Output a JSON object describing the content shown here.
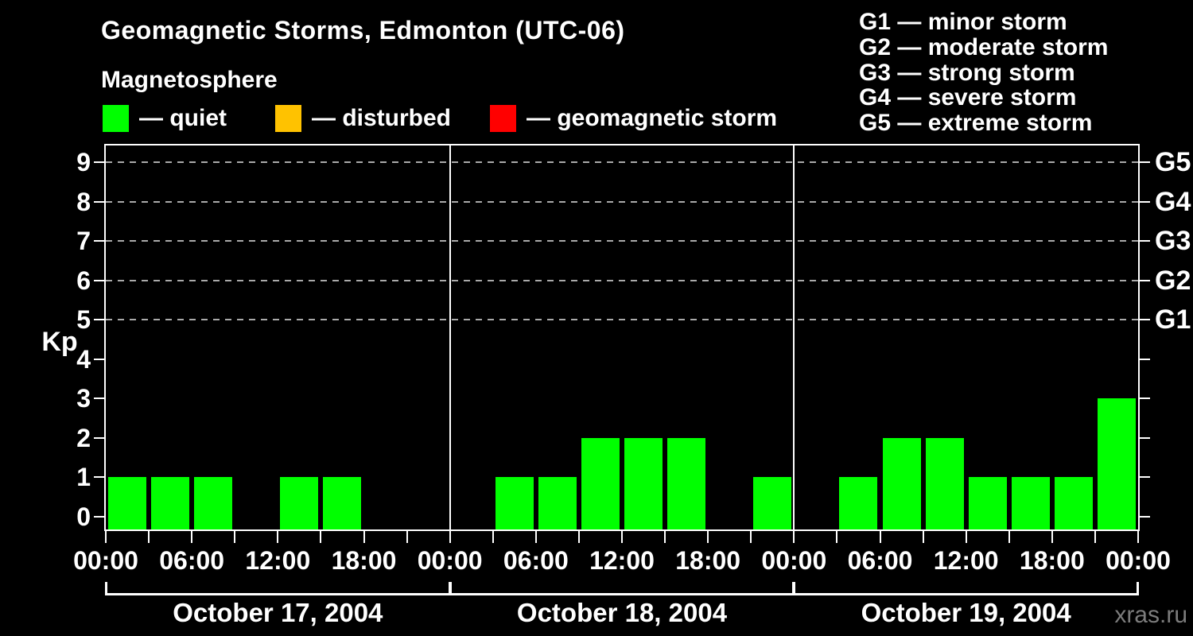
{
  "header": {
    "title": "Geomagnetic Storms, Edmonton (UTC-06)",
    "subtitle": "Magnetosphere"
  },
  "legend": {
    "items": [
      {
        "name": "quiet",
        "label": "— quiet",
        "color": "#00ff00"
      },
      {
        "name": "disturbed",
        "label": "— disturbed",
        "color": "#ffc200"
      },
      {
        "name": "geomagnetic-storm",
        "label": "— geomagnetic storm",
        "color": "#ff0000"
      }
    ]
  },
  "storm_scale": [
    "G1 — minor storm",
    "G2 — moderate storm",
    "G3 — strong storm",
    "G4 — severe storm",
    "G5 — extreme storm"
  ],
  "watermark": "xras.ru",
  "chart_data": {
    "type": "bar",
    "title": "Geomagnetic Storms, Edmonton (UTC-06)",
    "subtitle": "Magnetosphere",
    "xlabel": "",
    "ylabel": "Kp",
    "ylim": [
      -0.4,
      9.45
    ],
    "yticks": [
      0,
      1,
      2,
      3,
      4,
      5,
      6,
      7,
      8,
      9
    ],
    "grid": "dashed horizontal lines at storm levels only",
    "grid_levels": [
      5,
      6,
      7,
      8,
      9
    ],
    "right_axis_labels": [
      {
        "label": "G1",
        "value": 5
      },
      {
        "label": "G2",
        "value": 6
      },
      {
        "label": "G3",
        "value": 7
      },
      {
        "label": "G4",
        "value": 8
      },
      {
        "label": "G5",
        "value": 9
      }
    ],
    "legend_position": "top-left",
    "bar_color": "#00ff00",
    "slot_hours": 3,
    "x_tick_interval_hours": 3,
    "x_label_interval_hours": 6,
    "x_labels_cycle": [
      "00:00",
      "06:00",
      "12:00",
      "18:00"
    ],
    "days": [
      {
        "date": "October 17, 2004",
        "values": [
          1,
          1,
          1,
          0,
          1,
          1,
          0,
          0
        ]
      },
      {
        "date": "October 18, 2004",
        "values": [
          0,
          1,
          1,
          2,
          2,
          2,
          0,
          1
        ]
      },
      {
        "date": "October 19, 2004",
        "values": [
          0,
          1,
          2,
          2,
          1,
          1,
          1,
          3
        ]
      }
    ]
  }
}
